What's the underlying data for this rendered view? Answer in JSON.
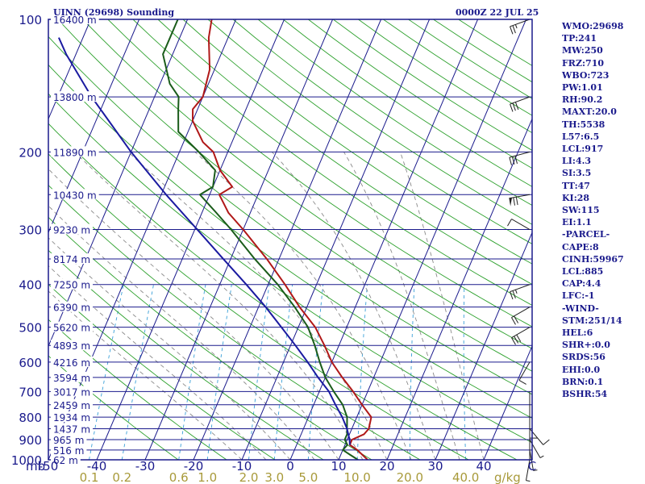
{
  "header": {
    "title": "UINN (29698) Sounding",
    "valid_time": "0000Z 22 JUL 25"
  },
  "indices": [
    "WMO:29698",
    "TP:241",
    "MW:250",
    "FRZ:710",
    "WBO:723",
    "PW:1.01",
    "RH:90.2",
    "MAXT:20.0",
    "TH:5538",
    "L57:6.5",
    "LCL:917",
    "LI:4.3",
    "SI:3.5",
    "TT:47",
    "KI:28",
    "SW:115",
    "EI:1.1",
    "-PARCEL-",
    "CAPE:8",
    "CINH:59967",
    "LCL:885",
    "CAP:4.4",
    "LFC:-1",
    "-WIND-",
    "STM:251/14",
    "HEL:6",
    "SHR+:0.0",
    "SRDS:56",
    "EHI:0.0",
    "BRN:0.1",
    "BSHR:54"
  ],
  "colors": {
    "frame": "#1a1a8c",
    "isobar": "#1a1a8c",
    "isotherm": "#1a1a8c",
    "dry_adiabat": "#2ca02c",
    "moist_adiabat": "#8a8a8a",
    "mixing_ratio": "#3aa0d8",
    "temperature": "#b01818",
    "dewpoint": "#1a5c1a",
    "parcel": "#1a1aa0",
    "wind": "#202020",
    "mixing_label": "#a89a3a"
  },
  "chart_data": {
    "type": "line",
    "diagram": "skew-t log-p",
    "pressure_unit_label": "mb",
    "pressure_levels": [
      100,
      200,
      300,
      400,
      500,
      600,
      700,
      800,
      900,
      1000
    ],
    "pressure_labels": [
      "100",
      "200",
      "300",
      "400",
      "500",
      "600",
      "700",
      "800",
      "900",
      "1000"
    ],
    "height_labels": [
      {
        "p": 100,
        "label": "16400 m"
      },
      {
        "p": 150,
        "label": "13800 m"
      },
      {
        "p": 200,
        "label": "11890 m"
      },
      {
        "p": 250,
        "label": "10430 m"
      },
      {
        "p": 300,
        "label": "9230 m"
      },
      {
        "p": 350,
        "label": "8174 m"
      },
      {
        "p": 400,
        "label": "7250 m"
      },
      {
        "p": 450,
        "label": "6390 m"
      },
      {
        "p": 500,
        "label": "5620 m"
      },
      {
        "p": 550,
        "label": "4893 m"
      },
      {
        "p": 600,
        "label": "4216 m"
      },
      {
        "p": 650,
        "label": "3594 m"
      },
      {
        "p": 700,
        "label": "3017 m"
      },
      {
        "p": 750,
        "label": "2459 m"
      },
      {
        "p": 800,
        "label": "1934 m"
      },
      {
        "p": 850,
        "label": "1437 m"
      },
      {
        "p": 900,
        "label": "965 m"
      },
      {
        "p": 950,
        "label": "516 m"
      },
      {
        "p": 1000,
        "label": "62 m"
      }
    ],
    "temperature_ticks": [
      -50,
      -40,
      -30,
      -20,
      -10,
      0,
      10,
      20,
      30,
      40,
      50
    ],
    "temperature_tick_labels": [
      "-50",
      "-40",
      "-30",
      "-20",
      "-10",
      "0",
      "10",
      "20",
      "30",
      "40",
      "C"
    ],
    "mixing_ratio_labels": [
      {
        "w": 0.1,
        "label": "0.1"
      },
      {
        "w": 0.2,
        "label": "0.2"
      },
      {
        "w": 0.6,
        "label": "0.6"
      },
      {
        "w": 1.0,
        "label": "1.0"
      },
      {
        "w": 2.0,
        "label": "2.0"
      },
      {
        "w": 3.0,
        "label": "3.0"
      },
      {
        "w": 5.0,
        "label": "5.0"
      },
      {
        "w": 10.0,
        "label": "10.0"
      },
      {
        "w": 20.0,
        "label": "20.0"
      },
      {
        "w": 40.0,
        "label": "40.0"
      }
    ],
    "mixing_ratio_unit": "g/kg",
    "series": [
      {
        "name": "",
        "role": "temperature",
        "points": [
          [
            1000,
            16.0
          ],
          [
            975,
            14.5
          ],
          [
            950,
            13.0
          ],
          [
            925,
            11.0
          ],
          [
            900,
            11.0
          ],
          [
            875,
            13.0
          ],
          [
            850,
            13.5
          ],
          [
            800,
            13.0
          ],
          [
            750,
            10.0
          ],
          [
            700,
            7.0
          ],
          [
            650,
            3.5
          ],
          [
            600,
            0.0
          ],
          [
            550,
            -3.0
          ],
          [
            500,
            -6.5
          ],
          [
            450,
            -11.5
          ],
          [
            400,
            -16.5
          ],
          [
            350,
            -22.5
          ],
          [
            300,
            -30.0
          ],
          [
            275,
            -34.5
          ],
          [
            250,
            -38.0
          ],
          [
            240,
            -36.0
          ],
          [
            220,
            -40.0
          ],
          [
            200,
            -43.0
          ],
          [
            190,
            -46.0
          ],
          [
            170,
            -50.0
          ],
          [
            160,
            -51.0
          ],
          [
            150,
            -50.0
          ],
          [
            130,
            -51.0
          ],
          [
            110,
            -54.0
          ],
          [
            100,
            -55.0
          ]
        ]
      },
      {
        "name": "",
        "role": "dewpoint",
        "points": [
          [
            1000,
            14.0
          ],
          [
            975,
            12.0
          ],
          [
            950,
            10.0
          ],
          [
            925,
            10.5
          ],
          [
            900,
            9.5
          ],
          [
            875,
            9.5
          ],
          [
            850,
            9.0
          ],
          [
            800,
            8.0
          ],
          [
            750,
            6.0
          ],
          [
            700,
            3.0
          ],
          [
            650,
            0.0
          ],
          [
            600,
            -2.5
          ],
          [
            550,
            -5.0
          ],
          [
            500,
            -8.0
          ],
          [
            450,
            -12.5
          ],
          [
            400,
            -18.0
          ],
          [
            350,
            -25.0
          ],
          [
            300,
            -32.5
          ],
          [
            275,
            -37.0
          ],
          [
            250,
            -42.0
          ],
          [
            240,
            -40.0
          ],
          [
            220,
            -41.0
          ],
          [
            200,
            -46.0
          ],
          [
            180,
            -52.0
          ],
          [
            160,
            -54.0
          ],
          [
            150,
            -55.0
          ],
          [
            140,
            -58.0
          ],
          [
            120,
            -62.0
          ],
          [
            100,
            -62.0
          ]
        ]
      },
      {
        "name": "",
        "role": "parcel",
        "points": [
          [
            925,
            11.0
          ],
          [
            900,
            10.5
          ],
          [
            850,
            9.0
          ],
          [
            800,
            7.0
          ],
          [
            750,
            4.5
          ],
          [
            700,
            2.0
          ],
          [
            650,
            -1.5
          ],
          [
            600,
            -5.0
          ],
          [
            550,
            -9.0
          ],
          [
            500,
            -13.5
          ],
          [
            450,
            -18.5
          ],
          [
            400,
            -24.5
          ],
          [
            350,
            -31.5
          ],
          [
            300,
            -39.5
          ],
          [
            250,
            -49.0
          ],
          [
            200,
            -60.0
          ],
          [
            150,
            -73.0
          ],
          [
            120,
            -82.0
          ],
          [
            110,
            -85.0
          ]
        ]
      }
    ],
    "winds": [
      {
        "p": 100,
        "dir": 250,
        "kt": 25
      },
      {
        "p": 150,
        "dir": 250,
        "kt": 30
      },
      {
        "p": 200,
        "dir": 255,
        "kt": 30
      },
      {
        "p": 250,
        "dir": 260,
        "kt": 70
      },
      {
        "p": 300,
        "dir": 300,
        "kt": 10
      },
      {
        "p": 400,
        "dir": 250,
        "kt": 25
      },
      {
        "p": 450,
        "dir": 240,
        "kt": 20
      },
      {
        "p": 500,
        "dir": 240,
        "kt": 30
      },
      {
        "p": 600,
        "dir": 210,
        "kt": 10
      },
      {
        "p": 800,
        "dir": 180,
        "kt": 10
      },
      {
        "p": 850,
        "dir": 140,
        "kt": 10
      },
      {
        "p": 900,
        "dir": 150,
        "kt": 5
      },
      {
        "p": 950,
        "dir": 170,
        "kt": 5
      },
      {
        "p": 1000,
        "dir": 190,
        "kt": 5
      }
    ]
  }
}
